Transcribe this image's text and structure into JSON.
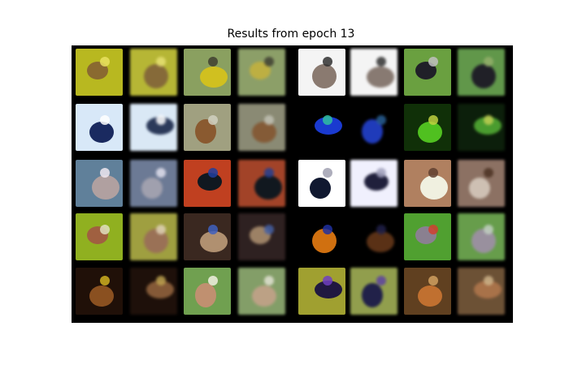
{
  "figure": {
    "title": "Results from epoch 13",
    "rows": 5,
    "cols": 8,
    "panel_bg": "#000000",
    "tiles": [
      {
        "bg": "#b8b820",
        "fg": "#8a6a30",
        "accent": "#e8e060"
      },
      {
        "bg": "#b8b820",
        "fg": "#8a6a30",
        "accent": "#e8e060"
      },
      {
        "bg": "#8aa060",
        "fg": "#d0c020",
        "accent": "#404030"
      },
      {
        "bg": "#8aa060",
        "fg": "#c0b030",
        "accent": "#404030"
      },
      {
        "bg": "#f4f4f4",
        "fg": "#8a7a70",
        "accent": "#303030"
      },
      {
        "bg": "#f4f4f4",
        "fg": "#8a7a70",
        "accent": "#303030"
      },
      {
        "bg": "#6aa040",
        "fg": "#202028",
        "accent": "#c0c0c0"
      },
      {
        "bg": "#5a9a40",
        "fg": "#202028",
        "accent": "#90b060"
      },
      {
        "bg": "#d8e8f8",
        "fg": "#1a2a60",
        "accent": "#ffffff"
      },
      {
        "bg": "#d8e8f8",
        "fg": "#2a3a60",
        "accent": "#ffffff"
      },
      {
        "bg": "#a0a080",
        "fg": "#8a5a30",
        "accent": "#d0d0c0"
      },
      {
        "bg": "#8a8a70",
        "fg": "#8a5a30",
        "accent": "#c0c0b0"
      },
      {
        "bg": "#000000",
        "fg": "#1a3ad0",
        "accent": "#30c0a0"
      },
      {
        "bg": "#000000",
        "fg": "#1a3ad0",
        "accent": "#2060a0"
      },
      {
        "bg": "#103008",
        "fg": "#50c020",
        "accent": "#c0d040"
      },
      {
        "bg": "#0a2008",
        "fg": "#40a020",
        "accent": "#c0d040"
      },
      {
        "bg": "#60809a",
        "fg": "#b0a0a0",
        "accent": "#f0e8f0"
      },
      {
        "bg": "#6a7a9a",
        "fg": "#a0a0b0",
        "accent": "#e0e0f0"
      },
      {
        "bg": "#c04020",
        "fg": "#101820",
        "accent": "#2040a0"
      },
      {
        "bg": "#b04020",
        "fg": "#101820",
        "accent": "#2040a0"
      },
      {
        "bg": "#ffffff",
        "fg": "#101830",
        "accent": "#a0a0b0"
      },
      {
        "bg": "#f0f0ff",
        "fg": "#202040",
        "accent": "#a0a0c0"
      },
      {
        "bg": "#b08060",
        "fg": "#f0f0e0",
        "accent": "#604030"
      },
      {
        "bg": "#907060",
        "fg": "#d0c0b0",
        "accent": "#503020"
      },
      {
        "bg": "#90b020",
        "fg": "#a06040",
        "accent": "#e0e0c0"
      },
      {
        "bg": "#a0a030",
        "fg": "#a07050",
        "accent": "#e0d0b0"
      },
      {
        "bg": "#3a2820",
        "fg": "#b09070",
        "accent": "#4060c0"
      },
      {
        "bg": "#302020",
        "fg": "#a08060",
        "accent": "#4060b0"
      },
      {
        "bg": "#000000",
        "fg": "#d07010",
        "accent": "#2030a0"
      },
      {
        "bg": "#000000",
        "fg": "#603010",
        "accent": "#202050"
      },
      {
        "bg": "#50a030",
        "fg": "#8a8090",
        "accent": "#d04030"
      },
      {
        "bg": "#60a040",
        "fg": "#9a90a0",
        "accent": "#c0d0c0"
      },
      {
        "bg": "#201008",
        "fg": "#8a5020",
        "accent": "#d0b020"
      },
      {
        "bg": "#201008",
        "fg": "#8a5830",
        "accent": "#c0a040"
      },
      {
        "bg": "#70a050",
        "fg": "#c09070",
        "accent": "#f0f0e0"
      },
      {
        "bg": "#80a060",
        "fg": "#c0a080",
        "accent": "#e0e0d0"
      },
      {
        "bg": "#a0a030",
        "fg": "#201840",
        "accent": "#7040c0"
      },
      {
        "bg": "#90a040",
        "fg": "#202050",
        "accent": "#6040b0"
      },
      {
        "bg": "#604020",
        "fg": "#c07030",
        "accent": "#d0a060"
      },
      {
        "bg": "#705030",
        "fg": "#b07040",
        "accent": "#d0b080"
      }
    ]
  }
}
